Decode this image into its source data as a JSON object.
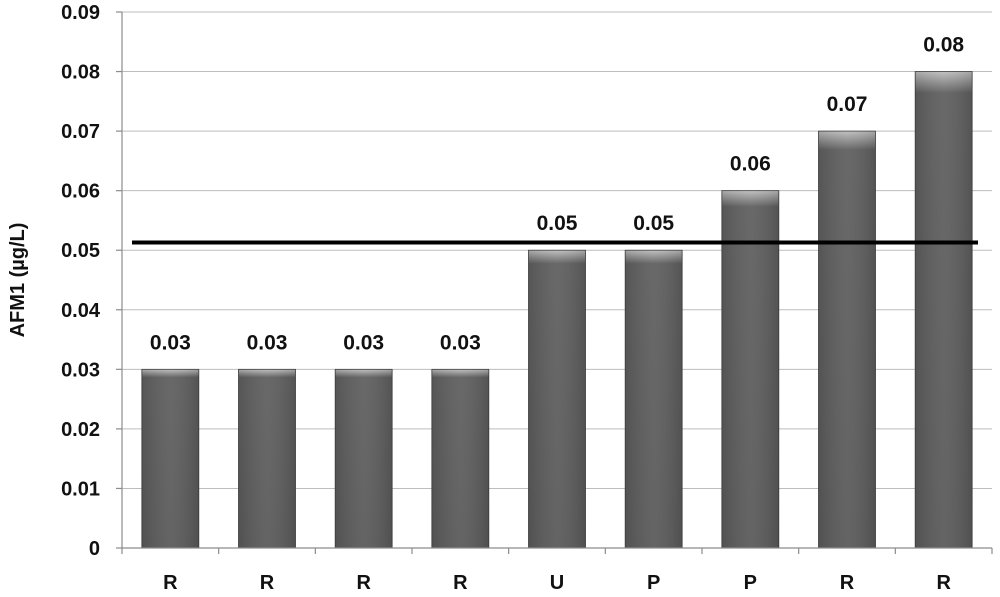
{
  "chart_data": {
    "type": "bar",
    "title": "",
    "xlabel": "",
    "ylabel": "AFM1 (µg/L)",
    "categories": [
      "R",
      "R",
      "R",
      "R",
      "U",
      "P",
      "P",
      "R",
      "R"
    ],
    "values": [
      0.03,
      0.03,
      0.03,
      0.03,
      0.05,
      0.05,
      0.06,
      0.07,
      0.08
    ],
    "data_labels": [
      "0.03",
      "0.03",
      "0.03",
      "0.03",
      "0.05",
      "0.05",
      "0.06",
      "0.07",
      "0.08"
    ],
    "ylim": [
      0,
      0.09
    ],
    "yticks": [
      0,
      0.01,
      0.02,
      0.03,
      0.04,
      0.05,
      0.06,
      0.07,
      0.08,
      0.09
    ],
    "ytick_labels": [
      "0",
      "0.01",
      "0.02",
      "0.03",
      "0.04",
      "0.05",
      "0.06",
      "0.07",
      "0.08",
      "0.09"
    ],
    "reference_line": 0.0513,
    "grid": true,
    "legend": "none",
    "bar_color": "#5f5f5f",
    "bar_highlight_color": "#bdbdbd",
    "reference_line_color": "#000000"
  }
}
